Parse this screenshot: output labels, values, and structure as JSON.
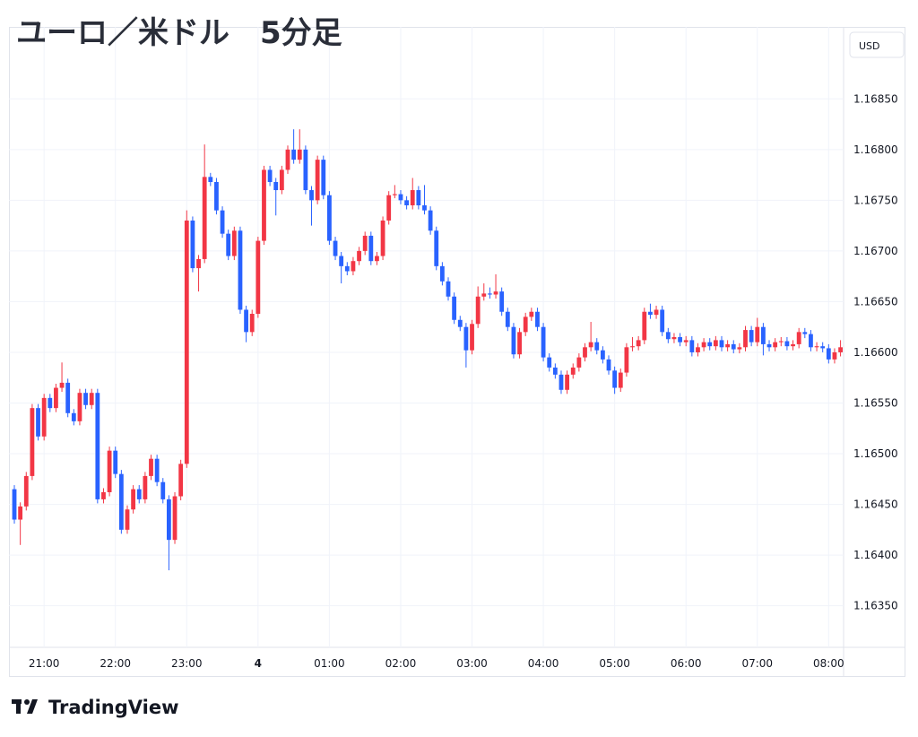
{
  "chart_data": {
    "type": "candlestick",
    "title": "ユーロ／米ドル　5分足",
    "y_axis_label": "USD",
    "up_color": "#f23645",
    "down_color": "#2962ff",
    "grid": true,
    "ylim": [
      1.16309,
      1.16921
    ],
    "yticks": [
      {
        "value": 1.1635,
        "label": "1.16350"
      },
      {
        "value": 1.164,
        "label": "1.16400"
      },
      {
        "value": 1.1645,
        "label": "1.16450"
      },
      {
        "value": 1.165,
        "label": "1.16500"
      },
      {
        "value": 1.1655,
        "label": "1.16550"
      },
      {
        "value": 1.166,
        "label": "1.16600"
      },
      {
        "value": 1.1665,
        "label": "1.16650"
      },
      {
        "value": 1.167,
        "label": "1.16700"
      },
      {
        "value": 1.1675,
        "label": "1.16750"
      },
      {
        "value": 1.168,
        "label": "1.16800"
      },
      {
        "value": 1.1685,
        "label": "1.16850"
      }
    ],
    "categories": [
      null,
      null,
      null,
      null,
      null,
      "21:00",
      null,
      null,
      null,
      null,
      null,
      null,
      null,
      null,
      null,
      null,
      null,
      "22:00",
      null,
      null,
      null,
      null,
      null,
      null,
      null,
      null,
      null,
      null,
      null,
      "23:00",
      null,
      null,
      null,
      null,
      null,
      null,
      null,
      null,
      null,
      null,
      null,
      "4",
      null,
      null,
      null,
      null,
      null,
      null,
      null,
      null,
      null,
      null,
      null,
      "01:00",
      null,
      null,
      null,
      null,
      null,
      null,
      null,
      null,
      null,
      null,
      null,
      "02:00",
      null,
      null,
      null,
      null,
      null,
      null,
      null,
      null,
      null,
      null,
      null,
      "03:00",
      null,
      null,
      null,
      null,
      null,
      null,
      null,
      null,
      null,
      null,
      null,
      "04:00",
      null,
      null,
      null,
      null,
      null,
      null,
      null,
      null,
      null,
      null,
      null,
      "05:00",
      null,
      null,
      null,
      null,
      null,
      null,
      null,
      null,
      null,
      null,
      null,
      "06:00",
      null,
      null,
      null,
      null,
      null,
      null,
      null,
      null,
      null,
      null,
      null,
      "07:00",
      null,
      null,
      null,
      null,
      null,
      null,
      null,
      null,
      null,
      null,
      null,
      "08:00",
      null,
      null
    ],
    "open": [
      1.16465,
      1.16435,
      1.16448,
      1.16478,
      1.16545,
      1.16517,
      1.16555,
      1.16545,
      1.16565,
      1.1657,
      1.1654,
      1.16532,
      1.1656,
      1.16548,
      1.1656,
      1.16455,
      1.16462,
      1.16503,
      1.1648,
      1.16425,
      1.16445,
      1.16465,
      1.16455,
      1.16478,
      1.16495,
      1.16472,
      1.16455,
      1.16415,
      1.16458,
      1.1649,
      1.1673,
      1.16683,
      1.16692,
      1.16773,
      1.16768,
      1.1674,
      1.16717,
      1.16695,
      1.1672,
      1.16642,
      1.1662,
      1.16638,
      1.1671,
      1.1678,
      1.16768,
      1.1676,
      1.1678,
      1.168,
      1.1679,
      1.168,
      1.1676,
      1.1675,
      1.1679,
      1.16755,
      1.1671,
      1.16695,
      1.16685,
      1.1668,
      1.1669,
      1.167,
      1.16715,
      1.1669,
      1.16695,
      1.1673,
      1.16755,
      1.16756,
      1.1675,
      1.16745,
      1.1676,
      1.16745,
      1.1674,
      1.1672,
      1.16685,
      1.1667,
      1.16655,
      1.16632,
      1.16625,
      1.16602,
      1.16628,
      1.16655,
      1.16658,
      1.16657,
      1.1666,
      1.1664,
      1.16625,
      1.16598,
      1.1662,
      1.16635,
      1.1664,
      1.16625,
      1.16595,
      1.16585,
      1.16578,
      1.16563,
      1.16578,
      1.16585,
      1.16595,
      1.16605,
      1.1661,
      1.16602,
      1.16593,
      1.16582,
      1.16565,
      1.1658,
      1.16605,
      1.16606,
      1.16612,
      1.1664,
      1.16637,
      1.16642,
      1.1662,
      1.16613,
      1.16615,
      1.1661,
      1.16612,
      1.166,
      1.16605,
      1.1661,
      1.16606,
      1.16612,
      1.16605,
      1.16608,
      1.16603,
      1.16605,
      1.16622,
      1.1661,
      1.16625,
      1.16608,
      1.16605,
      1.1661,
      1.16611,
      1.16606,
      1.16608,
      1.1662,
      1.16618,
      1.16605,
      1.16606,
      1.16604,
      1.16593,
      1.166
    ],
    "high": [
      1.16469,
      1.16452,
      1.16482,
      1.16549,
      1.16549,
      1.16559,
      1.16559,
      1.16569,
      1.1659,
      1.16574,
      1.16544,
      1.16564,
      1.16564,
      1.16564,
      1.16564,
      1.16466,
      1.16507,
      1.16507,
      1.16484,
      1.16449,
      1.16469,
      1.16469,
      1.16482,
      1.16499,
      1.16499,
      1.16476,
      1.16459,
      1.16462,
      1.16494,
      1.1674,
      1.16734,
      1.16696,
      1.16805,
      1.16777,
      1.16772,
      1.16744,
      1.16721,
      1.16724,
      1.16724,
      1.16646,
      1.16642,
      1.16714,
      1.16784,
      1.16784,
      1.16772,
      1.16784,
      1.16804,
      1.1682,
      1.1682,
      1.16804,
      1.16764,
      1.16794,
      1.16794,
      1.16759,
      1.16714,
      1.16699,
      1.16689,
      1.16694,
      1.16704,
      1.16719,
      1.16719,
      1.16699,
      1.16734,
      1.16759,
      1.16765,
      1.1676,
      1.16754,
      1.16772,
      1.16764,
      1.16765,
      1.16744,
      1.16724,
      1.16689,
      1.16674,
      1.16659,
      1.16636,
      1.16629,
      1.16632,
      1.16665,
      1.16668,
      1.16664,
      1.16677,
      1.16664,
      1.16644,
      1.16629,
      1.16624,
      1.16639,
      1.16644,
      1.16644,
      1.16629,
      1.16599,
      1.16589,
      1.16582,
      1.16582,
      1.16589,
      1.16599,
      1.16609,
      1.1663,
      1.16614,
      1.16606,
      1.16597,
      1.16586,
      1.16584,
      1.16609,
      1.16615,
      1.16616,
      1.16644,
      1.16648,
      1.16646,
      1.16646,
      1.16624,
      1.16619,
      1.16619,
      1.16616,
      1.16616,
      1.16609,
      1.16614,
      1.16614,
      1.16616,
      1.16616,
      1.16612,
      1.16612,
      1.16609,
      1.16626,
      1.16626,
      1.16634,
      1.16629,
      1.16612,
      1.16614,
      1.16615,
      1.16615,
      1.16612,
      1.16624,
      1.16624,
      1.16622,
      1.1661,
      1.1661,
      1.16608,
      1.16604,
      1.16612
    ],
    "low": [
      1.16431,
      1.1641,
      1.16444,
      1.16474,
      1.16513,
      1.16513,
      1.16541,
      1.16541,
      1.16561,
      1.16536,
      1.16528,
      1.16528,
      1.16544,
      1.16544,
      1.16451,
      1.16451,
      1.16458,
      1.16476,
      1.16421,
      1.16421,
      1.16441,
      1.16451,
      1.16451,
      1.16474,
      1.16468,
      1.16451,
      1.16385,
      1.16411,
      1.16454,
      1.16486,
      1.16679,
      1.1666,
      1.16688,
      1.16764,
      1.16736,
      1.16713,
      1.16691,
      1.16691,
      1.16638,
      1.1661,
      1.16616,
      1.16634,
      1.16706,
      1.16764,
      1.16735,
      1.16756,
      1.16776,
      1.16786,
      1.16786,
      1.16756,
      1.16725,
      1.16746,
      1.16751,
      1.16706,
      1.16691,
      1.16668,
      1.16676,
      1.16676,
      1.16686,
      1.16696,
      1.16686,
      1.16686,
      1.16691,
      1.16726,
      1.16752,
      1.16746,
      1.16741,
      1.16741,
      1.16741,
      1.16736,
      1.16716,
      1.16681,
      1.16666,
      1.16651,
      1.16628,
      1.16621,
      1.16585,
      1.16598,
      1.16624,
      1.16651,
      1.16653,
      1.16653,
      1.16636,
      1.16621,
      1.16594,
      1.16594,
      1.16616,
      1.16631,
      1.16621,
      1.16591,
      1.16581,
      1.16574,
      1.16559,
      1.16559,
      1.16574,
      1.16581,
      1.16591,
      1.16601,
      1.16598,
      1.16589,
      1.16578,
      1.16559,
      1.16561,
      1.16576,
      1.16601,
      1.16602,
      1.16608,
      1.16633,
      1.16633,
      1.16616,
      1.16609,
      1.16609,
      1.16606,
      1.16606,
      1.16596,
      1.16596,
      1.16601,
      1.16602,
      1.16602,
      1.16601,
      1.16601,
      1.16599,
      1.16599,
      1.16601,
      1.16606,
      1.16606,
      1.16597,
      1.16601,
      1.16601,
      1.16606,
      1.16602,
      1.16602,
      1.16604,
      1.16614,
      1.16601,
      1.16601,
      1.166,
      1.16589,
      1.16589,
      1.16596
    ],
    "close": [
      1.16435,
      1.16448,
      1.16478,
      1.16545,
      1.16517,
      1.16555,
      1.16545,
      1.16565,
      1.1657,
      1.1654,
      1.16532,
      1.1656,
      1.16548,
      1.1656,
      1.16455,
      1.16462,
      1.16503,
      1.1648,
      1.16425,
      1.16445,
      1.16465,
      1.16455,
      1.16478,
      1.16495,
      1.16472,
      1.16455,
      1.16415,
      1.16458,
      1.1649,
      1.1673,
      1.16683,
      1.16692,
      1.16773,
      1.16768,
      1.1674,
      1.16717,
      1.16695,
      1.1672,
      1.16642,
      1.1662,
      1.16638,
      1.1671,
      1.1678,
      1.16768,
      1.1676,
      1.1678,
      1.168,
      1.1679,
      1.168,
      1.1676,
      1.1675,
      1.1679,
      1.16755,
      1.1671,
      1.16695,
      1.16685,
      1.1668,
      1.1669,
      1.167,
      1.16715,
      1.1669,
      1.16695,
      1.1673,
      1.16755,
      1.16756,
      1.1675,
      1.16745,
      1.1676,
      1.16745,
      1.1674,
      1.1672,
      1.16685,
      1.1667,
      1.16655,
      1.16632,
      1.16625,
      1.16602,
      1.16628,
      1.16655,
      1.16658,
      1.16657,
      1.1666,
      1.1664,
      1.16625,
      1.16598,
      1.1662,
      1.16635,
      1.1664,
      1.16625,
      1.16595,
      1.16585,
      1.16578,
      1.16563,
      1.16578,
      1.16585,
      1.16595,
      1.16605,
      1.1661,
      1.16602,
      1.16593,
      1.16582,
      1.16565,
      1.1658,
      1.16605,
      1.16606,
      1.16612,
      1.1664,
      1.16637,
      1.16642,
      1.1662,
      1.16613,
      1.16615,
      1.1661,
      1.16612,
      1.166,
      1.16605,
      1.1661,
      1.16606,
      1.16612,
      1.16605,
      1.16608,
      1.16603,
      1.16605,
      1.16622,
      1.1661,
      1.16625,
      1.16608,
      1.16605,
      1.1661,
      1.16611,
      1.16606,
      1.16608,
      1.1662,
      1.16618,
      1.16605,
      1.16606,
      1.16604,
      1.16593,
      1.166,
      1.16605
    ]
  },
  "brand": "TradingView"
}
